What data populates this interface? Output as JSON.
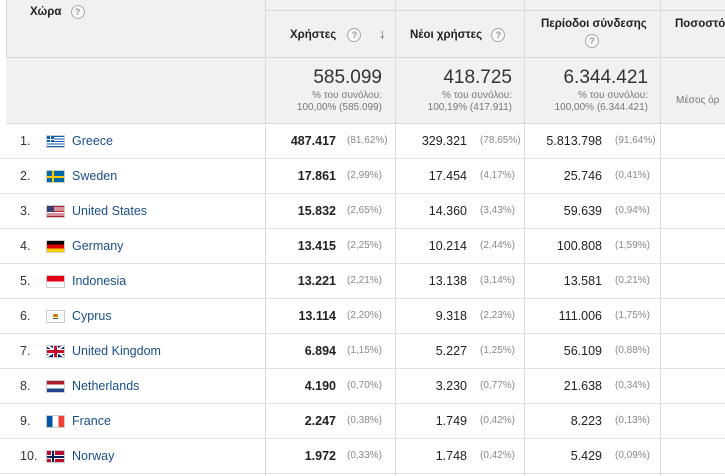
{
  "header": {
    "country_label": "Χώρα",
    "users_label": "Χρήστες",
    "new_users_label": "Νέοι χρήστες",
    "sessions_label": "Περίοδοι σύνδεσης",
    "extra_label": "Ποσοστό ε",
    "help_glyph": "?",
    "sort_glyph": "↓"
  },
  "totals": {
    "users": {
      "value": "585.099",
      "line1": "% του συνόλου:",
      "line2": "100,00% (585.099)"
    },
    "new_users": {
      "value": "418.725",
      "line1": "% του συνόλου:",
      "line2": "100,19% (417.911)"
    },
    "sessions": {
      "value": "6.344.421",
      "line1": "% του συνόλου:",
      "line2": "100,00% (6.344.421)"
    },
    "extra": {
      "line1": "Μέσος όρ"
    }
  },
  "rows": [
    {
      "rank": "1.",
      "country": "Greece",
      "flag": "gr",
      "users": "487.417",
      "users_pct": "(81,62%)",
      "new_users": "329.321",
      "new_users_pct": "(78,65%)",
      "sessions": "5.813.798",
      "sessions_pct": "(91,64%)"
    },
    {
      "rank": "2.",
      "country": "Sweden",
      "flag": "se",
      "users": "17.861",
      "users_pct": "(2,99%)",
      "new_users": "17.454",
      "new_users_pct": "(4,17%)",
      "sessions": "25.746",
      "sessions_pct": "(0,41%)"
    },
    {
      "rank": "3.",
      "country": "United States",
      "flag": "us",
      "users": "15.832",
      "users_pct": "(2,65%)",
      "new_users": "14.360",
      "new_users_pct": "(3,43%)",
      "sessions": "59.639",
      "sessions_pct": "(0,94%)"
    },
    {
      "rank": "4.",
      "country": "Germany",
      "flag": "de",
      "users": "13.415",
      "users_pct": "(2,25%)",
      "new_users": "10.214",
      "new_users_pct": "(2,44%)",
      "sessions": "100.808",
      "sessions_pct": "(1,59%)"
    },
    {
      "rank": "5.",
      "country": "Indonesia",
      "flag": "id",
      "users": "13.221",
      "users_pct": "(2,21%)",
      "new_users": "13.138",
      "new_users_pct": "(3,14%)",
      "sessions": "13.581",
      "sessions_pct": "(0,21%)"
    },
    {
      "rank": "6.",
      "country": "Cyprus",
      "flag": "cy",
      "users": "13.114",
      "users_pct": "(2,20%)",
      "new_users": "9.318",
      "new_users_pct": "(2,23%)",
      "sessions": "111.006",
      "sessions_pct": "(1,75%)"
    },
    {
      "rank": "7.",
      "country": "United Kingdom",
      "flag": "gb",
      "users": "6.894",
      "users_pct": "(1,15%)",
      "new_users": "5.227",
      "new_users_pct": "(1,25%)",
      "sessions": "56.109",
      "sessions_pct": "(0,88%)"
    },
    {
      "rank": "8.",
      "country": "Netherlands",
      "flag": "nl",
      "users": "4.190",
      "users_pct": "(0,70%)",
      "new_users": "3.230",
      "new_users_pct": "(0,77%)",
      "sessions": "21.638",
      "sessions_pct": "(0,34%)"
    },
    {
      "rank": "9.",
      "country": "France",
      "flag": "fr",
      "users": "2.247",
      "users_pct": "(0,38%)",
      "new_users": "1.749",
      "new_users_pct": "(0,42%)",
      "sessions": "8.223",
      "sessions_pct": "(0,13%)"
    },
    {
      "rank": "10.",
      "country": "Norway",
      "flag": "no",
      "users": "1.972",
      "users_pct": "(0,33%)",
      "new_users": "1.748",
      "new_users_pct": "(0,42%)",
      "sessions": "5.429",
      "sessions_pct": "(0,09%)"
    }
  ]
}
